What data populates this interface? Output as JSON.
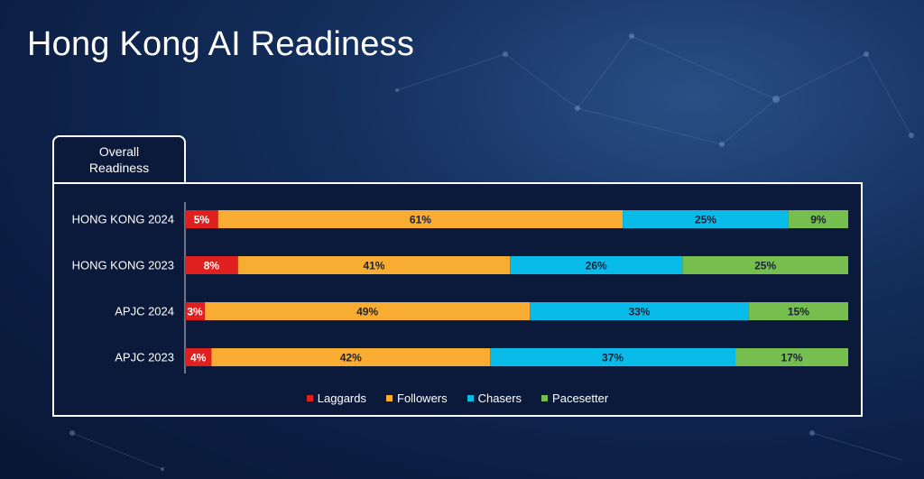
{
  "slide": {
    "title": "Hong Kong AI Readiness"
  },
  "tab": {
    "line1": "Overall",
    "line2": "Readiness"
  },
  "chart_data": {
    "type": "bar",
    "orientation": "horizontal",
    "stacked": true,
    "percent_stacked": true,
    "categories": [
      "HONG KONG 2024",
      "HONG KONG 2023",
      "APJC 2024",
      "APJC 2023"
    ],
    "series": [
      {
        "name": "Laggards",
        "color": "#e0201f",
        "values": [
          5,
          8,
          3,
          4
        ],
        "labels": [
          "5%",
          "8%",
          "3%",
          "4%"
        ]
      },
      {
        "name": "Followers",
        "color": "#f8ad32",
        "values": [
          61,
          41,
          49,
          42
        ],
        "labels": [
          "61%",
          "41%",
          "49%",
          "42%"
        ]
      },
      {
        "name": "Chasers",
        "color": "#08bbe9",
        "values": [
          25,
          26,
          33,
          37
        ],
        "labels": [
          "25%",
          "26%",
          "33%",
          "37%"
        ]
      },
      {
        "name": "Pacesetter",
        "color": "#76bf4f",
        "values": [
          9,
          25,
          15,
          17
        ],
        "labels": [
          "9%",
          "25%",
          "15%",
          "17%"
        ]
      }
    ],
    "legend": "bottom",
    "grid": false
  }
}
